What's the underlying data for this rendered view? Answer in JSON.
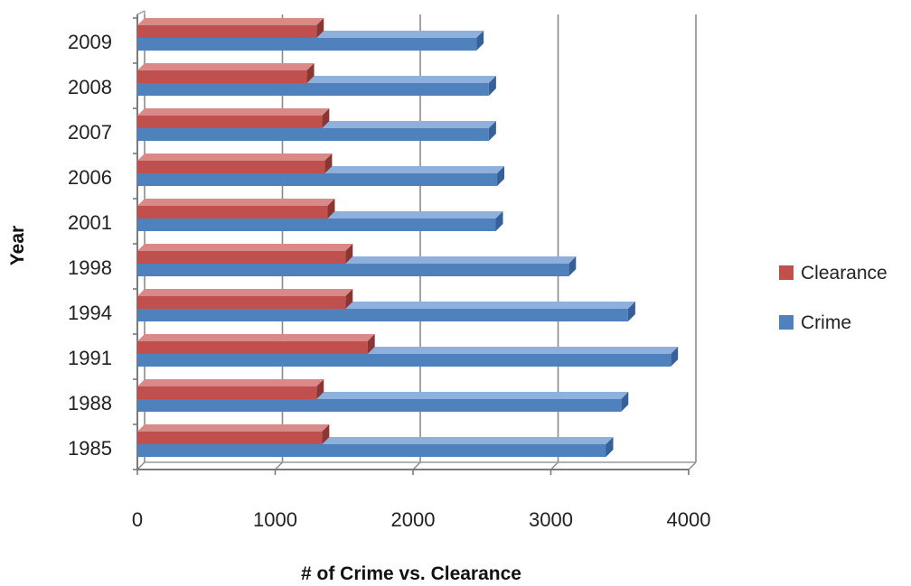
{
  "chart_data": {
    "type": "bar",
    "orientation": "horizontal",
    "categories": [
      "1985",
      "1988",
      "1991",
      "1994",
      "1998",
      "2001",
      "2006",
      "2007",
      "2008",
      "2009"
    ],
    "series": [
      {
        "name": "Clearance",
        "values": [
          1340,
          1300,
          1670,
          1510,
          1510,
          1380,
          1360,
          1340,
          1230,
          1300
        ],
        "color": "#c0504d"
      },
      {
        "name": "Crime",
        "values": [
          3400,
          3510,
          3870,
          3560,
          3130,
          2600,
          2610,
          2550,
          2550,
          2460
        ],
        "color": "#4f81bd"
      }
    ],
    "xlabel": "# of Crime vs. Clearance",
    "ylabel": "Year",
    "xlim": [
      0,
      4000
    ],
    "x_ticks": [
      "0",
      "1000",
      "2000",
      "3000",
      "4000"
    ],
    "grid": true,
    "legend_position": "right",
    "style": "3d"
  }
}
